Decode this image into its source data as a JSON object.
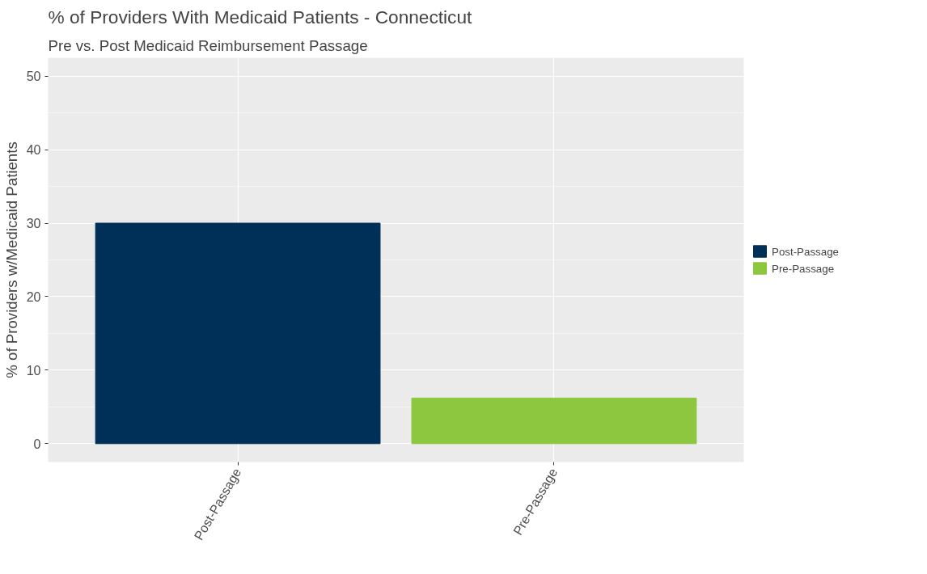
{
  "chart_data": {
    "type": "bar",
    "title": "% of Providers With Medicaid Patients - Connecticut",
    "subtitle": "Pre vs. Post Medicaid Reimbursement Passage",
    "ylabel": "% of Providers w/Medicaid Patients",
    "categories": [
      "Post-Passage",
      "Pre-Passage"
    ],
    "series": [
      {
        "name": "Post-Passage",
        "color": "#003057",
        "values": [
          30,
          null
        ]
      },
      {
        "name": "Pre-Passage",
        "color": "#8dc63f",
        "values": [
          null,
          6.2
        ]
      }
    ],
    "ylim": [
      -2.5,
      52.5
    ],
    "yticks": [
      0,
      10,
      20,
      30,
      40,
      50
    ],
    "grid": true,
    "legend": "right"
  }
}
